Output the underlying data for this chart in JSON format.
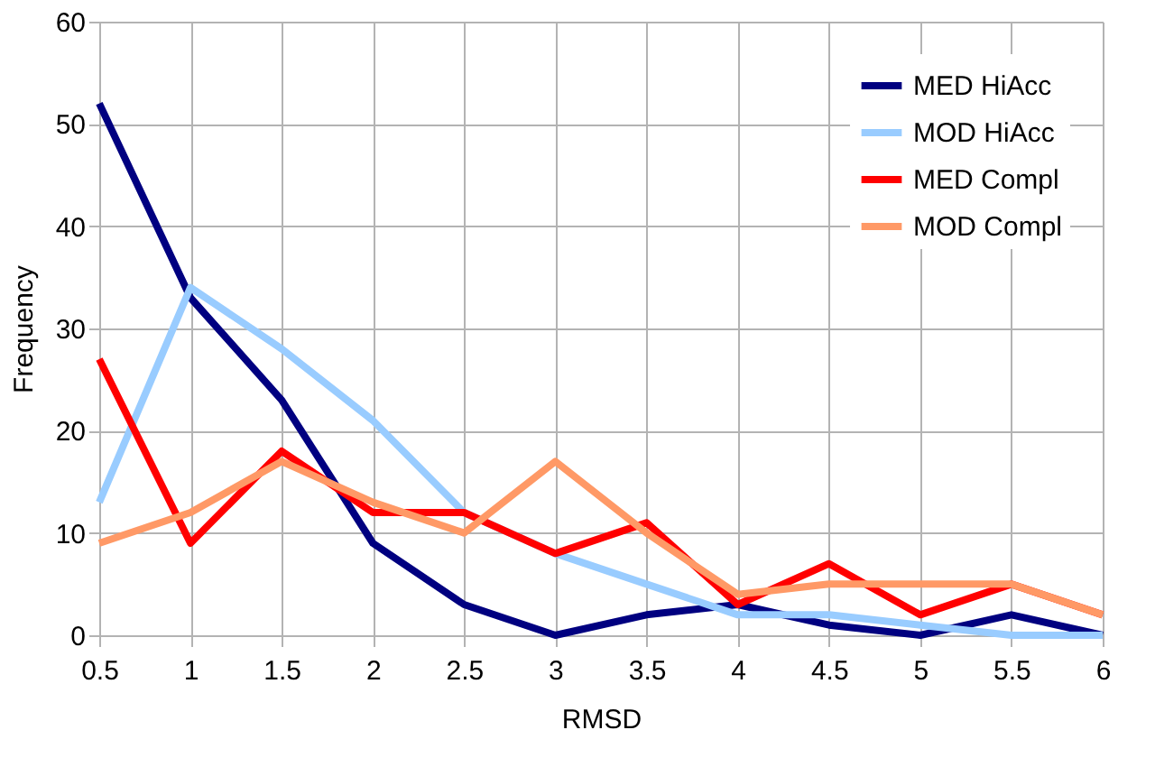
{
  "chart_data": {
    "type": "line",
    "xlabel": "RMSD",
    "ylabel": "Frequency",
    "x": [
      0.5,
      1,
      1.5,
      2,
      2.5,
      3,
      3.5,
      4,
      4.5,
      5,
      5.5,
      6
    ],
    "xlim": [
      0.5,
      6
    ],
    "xticks": [
      0.5,
      1,
      1.5,
      2,
      2.5,
      3,
      3.5,
      4,
      4.5,
      5,
      5.5,
      6
    ],
    "ylim": [
      0,
      60
    ],
    "yticks": [
      0,
      10,
      20,
      30,
      40,
      50,
      60
    ],
    "grid": true,
    "legend": "top right",
    "marker": "none",
    "line_style": "solid",
    "series": [
      {
        "name": "MED HiAcc",
        "color": "#000080",
        "values": [
          52,
          33,
          23,
          9,
          3,
          0,
          2,
          3,
          1,
          0,
          2,
          0
        ]
      },
      {
        "name": "MOD HiAcc",
        "color": "#99ccff",
        "values": [
          13,
          34,
          28,
          21,
          12,
          8,
          5,
          2,
          2,
          1,
          0,
          0
        ]
      },
      {
        "name": "MED Compl",
        "color": "#ff0000",
        "values": [
          27,
          9,
          18,
          12,
          12,
          8,
          11,
          3,
          7,
          2,
          5,
          2
        ]
      },
      {
        "name": "MOD Compl",
        "color": "#ff9966",
        "values": [
          9,
          12,
          17,
          13,
          10,
          17,
          10,
          4,
          5,
          5,
          5,
          2
        ]
      }
    ]
  }
}
